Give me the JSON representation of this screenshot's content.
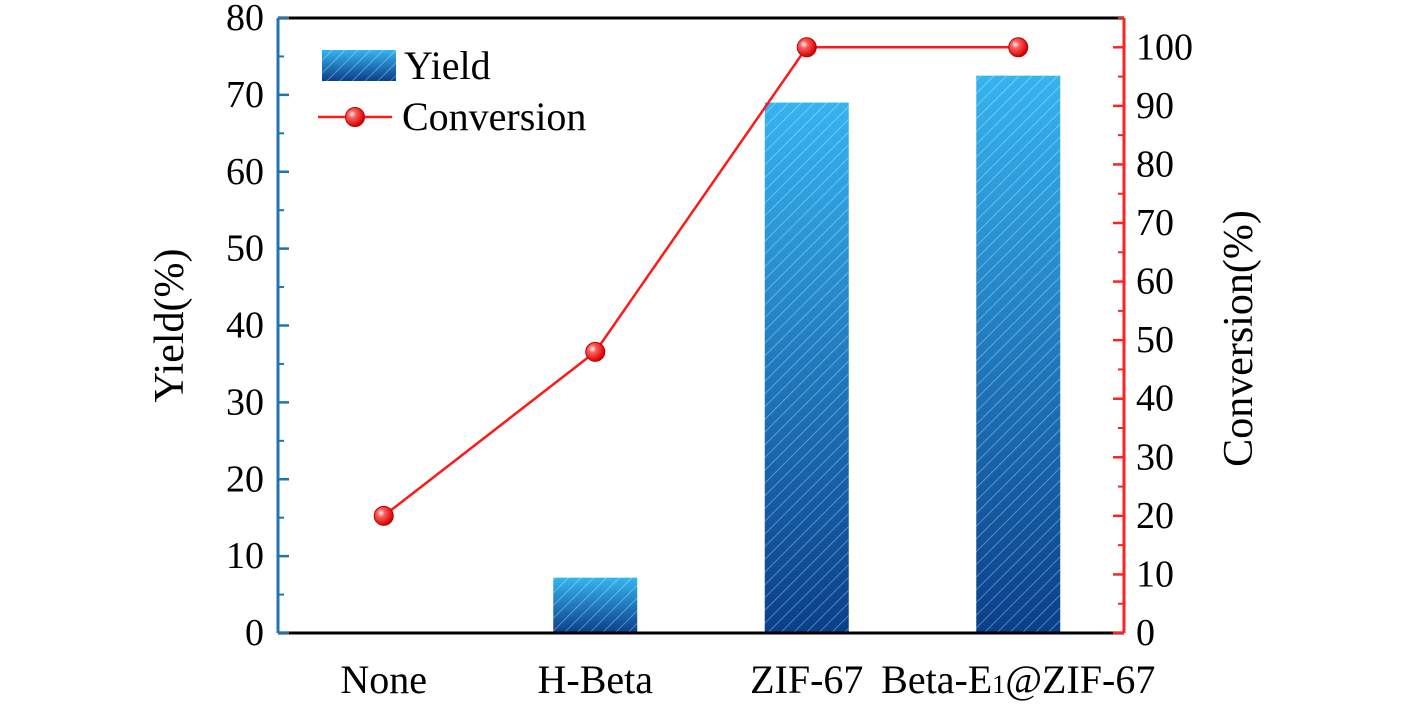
{
  "chart_data": {
    "type": "bar+line",
    "categories": [
      "None",
      "H-Beta",
      "ZIF-67",
      "Beta-E1@ZIF-67"
    ],
    "category_labels": [
      {
        "main": "None"
      },
      {
        "main": "H-Beta"
      },
      {
        "main": "ZIF-67"
      },
      {
        "main": "Beta-E",
        "sub": "1",
        "rest": "@ZIF-67"
      }
    ],
    "series": [
      {
        "name": "Yield",
        "type": "bar",
        "axis": "left",
        "values": [
          0,
          7.2,
          69.0,
          72.5
        ]
      },
      {
        "name": "Conversion",
        "type": "line",
        "axis": "right",
        "values": [
          20.0,
          48.0,
          100.0,
          100.0
        ]
      }
    ],
    "ylabel_left": "Yield(%)",
    "ylabel_right": "Conversion(%)",
    "ylim_left": [
      0,
      80
    ],
    "ylim_right": [
      0,
      105
    ],
    "yticks_left": [
      0,
      10,
      20,
      30,
      40,
      50,
      60,
      70,
      80
    ],
    "yticks_right": [
      0,
      10,
      20,
      30,
      40,
      50,
      60,
      70,
      80,
      90,
      100
    ],
    "legend_position": "top-left",
    "grid": false,
    "colors": {
      "bar_light": "#35b4f0",
      "bar_dark": "#0a3f8a",
      "line": "#ff1a1a",
      "left_axis": "#1f74b0",
      "right_axis": "#ff2020",
      "frame": "#000000"
    }
  }
}
